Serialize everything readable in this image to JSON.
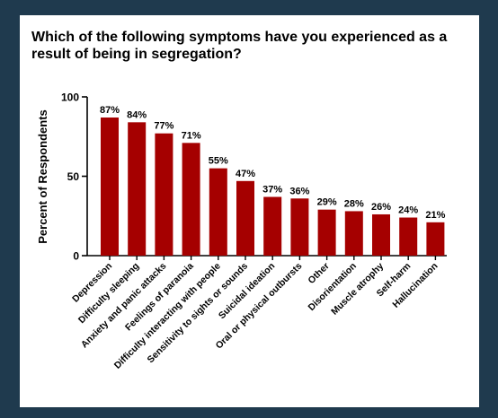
{
  "chart_data": {
    "type": "bar",
    "title": "Which of the following symptoms have you experienced as a result of being in segregation?",
    "xlabel": "",
    "ylabel": "Percent of Respondents",
    "ylim": [
      0,
      100
    ],
    "yticks": [
      0,
      50,
      100
    ],
    "grid": false,
    "legend": "none",
    "bar_color": "#a50000",
    "categories": [
      "Depression",
      "Difficulty sleeping",
      "Anxiety and panic attacks",
      "Feelings of paranoia",
      "Difficulty interacting with people",
      "Sensitivity to sights or sounds",
      "Suicidal ideation",
      "Oral or physical outbursts",
      "Other",
      "Disorientation",
      "Muscle atrophy",
      "Self-harm",
      "Hallucination"
    ],
    "values": [
      87,
      84,
      77,
      71,
      55,
      47,
      37,
      36,
      29,
      28,
      26,
      24,
      21
    ],
    "data_labels": [
      "87%",
      "84%",
      "77%",
      "71%",
      "55%",
      "47%",
      "37%",
      "36%",
      "29%",
      "28%",
      "26%",
      "24%",
      "21%"
    ]
  }
}
